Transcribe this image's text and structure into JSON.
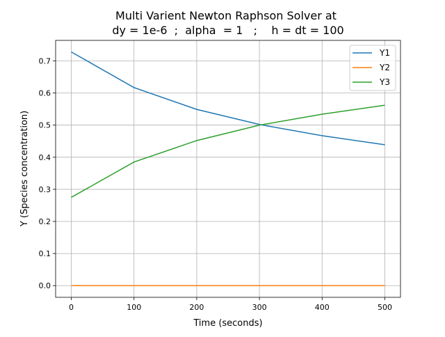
{
  "chart_data": {
    "type": "line",
    "title_line1": "Multi Varient Newton Raphson Solver at",
    "title_line2": "dy = 1e-6  ;  alpha  = 1   ;    h = dt = 100",
    "xlabel": "Time (seconds)",
    "ylabel": "Y (Species concentration)",
    "xlim": [
      -25,
      525
    ],
    "ylim": [
      -0.0364,
      0.764
    ],
    "xticks": [
      0,
      100,
      200,
      300,
      400,
      500
    ],
    "yticks": [
      0.0,
      0.1,
      0.2,
      0.3,
      0.4,
      0.5,
      0.6,
      0.7
    ],
    "grid": true,
    "legend_position": "top-right",
    "x": [
      0,
      100,
      200,
      300,
      400,
      500
    ],
    "series": [
      {
        "name": "Y1",
        "color": "#1f77b4",
        "values": [
          0.728,
          0.617,
          0.549,
          0.502,
          0.467,
          0.439
        ]
      },
      {
        "name": "Y2",
        "color": "#ff7f0e",
        "values": [
          0.0,
          0.0,
          0.0,
          0.0,
          0.0,
          0.0
        ]
      },
      {
        "name": "Y3",
        "color": "#2ca02c",
        "values": [
          0.275,
          0.385,
          0.452,
          0.5,
          0.534,
          0.562
        ]
      }
    ]
  }
}
